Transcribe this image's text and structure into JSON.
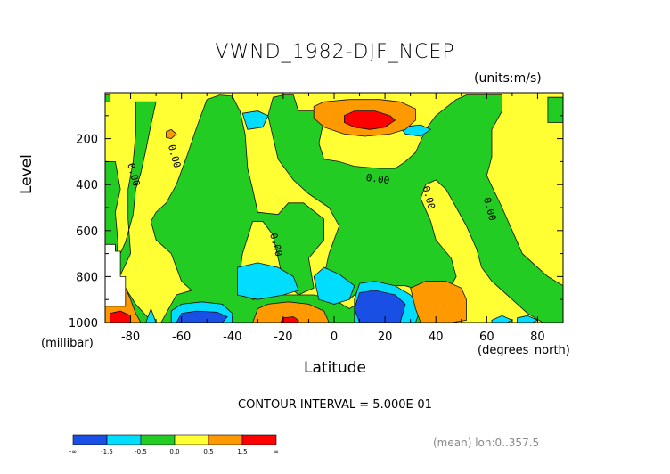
{
  "chart_data": {
    "type": "heatmap",
    "title": "VWND_1982-DJF_NCEP",
    "units": "(units:m/s)",
    "ylabel": "Level",
    "yunits": "(millibar)",
    "xlabel": "Latitude",
    "xunits": "(degrees_north)",
    "xlim": [
      -90,
      90
    ],
    "ylim": [
      1000,
      0
    ],
    "xticks": [
      -80,
      -60,
      -40,
      -20,
      0,
      20,
      40,
      60,
      80
    ],
    "yticks": [
      200,
      400,
      600,
      800,
      1000
    ],
    "contour_interval_text": "CONTOUR INTERVAL = 5.000E-01",
    "mean_text": "(mean) lon:0..357.5",
    "contour_labels": [
      {
        "text": "0.00",
        "lat": -80,
        "p": 360
      },
      {
        "text": "0.00",
        "lat": -64,
        "p": 280
      },
      {
        "text": "0.00",
        "lat": 17,
        "p": 390
      },
      {
        "text": "0.00",
        "lat": 36,
        "p": 460
      },
      {
        "text": "0.00",
        "lat": 60,
        "p": 510
      },
      {
        "text": "0.00",
        "lat": -24,
        "p": 665
      }
    ],
    "colorbar": {
      "colors": [
        "#1a4fe6",
        "#00ddff",
        "#22cc22",
        "#ffff33",
        "#ff9900",
        "#ff0000"
      ],
      "labels": [
        "-∞",
        "-1.5",
        "-0.5",
        "0.0",
        "0.5",
        "1.5",
        "∞"
      ]
    },
    "fill_regions": [
      {
        "color": "#ffff33",
        "poly": [
          [
            -90,
            0
          ],
          [
            90,
            0
          ],
          [
            90,
            1000
          ],
          [
            -90,
            1000
          ]
        ]
      },
      {
        "color": "#22cc22",
        "poly": [
          [
            -90,
            300
          ],
          [
            -86,
            300
          ],
          [
            -84,
            420
          ],
          [
            -86,
            520
          ],
          [
            -85,
            650
          ],
          [
            -87,
            900
          ],
          [
            -90,
            1000
          ]
        ]
      },
      {
        "color": "#22cc22",
        "poly": [
          [
            -90,
            10
          ],
          [
            -88,
            10
          ],
          [
            -88,
            40
          ],
          [
            -90,
            40
          ]
        ]
      },
      {
        "color": "#22cc22",
        "poly": [
          [
            -78,
            40
          ],
          [
            -70,
            40
          ],
          [
            -72,
            140
          ],
          [
            -74,
            250
          ],
          [
            -76,
            350
          ],
          [
            -78,
            420
          ],
          [
            -79,
            530
          ],
          [
            -82,
            650
          ],
          [
            -86,
            750
          ],
          [
            -82,
            850
          ],
          [
            -78,
            920
          ],
          [
            -73,
            980
          ],
          [
            -74,
            1000
          ],
          [
            -80,
            1000
          ],
          [
            -83,
            920
          ],
          [
            -86,
            840
          ],
          [
            -80,
            700
          ],
          [
            -81,
            550
          ],
          [
            -81,
            420
          ],
          [
            -79,
            300
          ],
          [
            -78,
            180
          ]
        ]
      },
      {
        "color": "#22cc22",
        "poly": [
          [
            -50,
            30
          ],
          [
            -45,
            10
          ],
          [
            -40,
            15
          ],
          [
            -37,
            80
          ],
          [
            -35,
            180
          ],
          [
            -34,
            330
          ],
          [
            -32,
            420
          ],
          [
            -30,
            520
          ],
          [
            -22,
            530
          ],
          [
            -18,
            480
          ],
          [
            -12,
            480
          ],
          [
            -4,
            550
          ],
          [
            -4,
            640
          ],
          [
            -10,
            720
          ],
          [
            -8,
            850
          ],
          [
            -14,
            880
          ],
          [
            -20,
            820
          ],
          [
            -24,
            620
          ],
          [
            -28,
            560
          ],
          [
            -32,
            560
          ],
          [
            -36,
            700
          ],
          [
            -38,
            860
          ],
          [
            -32,
            900
          ],
          [
            -20,
            880
          ],
          [
            -8,
            880
          ],
          [
            0,
            900
          ],
          [
            6,
            940
          ],
          [
            12,
            900
          ],
          [
            24,
            900
          ],
          [
            30,
            940
          ],
          [
            40,
            980
          ],
          [
            40,
            1000
          ],
          [
            -68,
            1000
          ],
          [
            -64,
            920
          ],
          [
            -62,
            880
          ],
          [
            -56,
            860
          ],
          [
            -60,
            820
          ],
          [
            -64,
            700
          ],
          [
            -70,
            640
          ],
          [
            -72,
            560
          ],
          [
            -70,
            520
          ],
          [
            -66,
            480
          ],
          [
            -62,
            400
          ],
          [
            -58,
            280
          ],
          [
            -54,
            150
          ]
        ]
      },
      {
        "color": "#22cc22",
        "poly": [
          [
            -16,
            10
          ],
          [
            -14,
            80
          ],
          [
            -6,
            80
          ],
          [
            -4,
            120
          ],
          [
            -6,
            220
          ],
          [
            -4,
            290
          ],
          [
            2,
            300
          ],
          [
            8,
            320
          ],
          [
            18,
            330
          ],
          [
            24,
            330
          ],
          [
            28,
            300
          ],
          [
            32,
            260
          ],
          [
            36,
            160
          ],
          [
            40,
            100
          ],
          [
            48,
            30
          ],
          [
            52,
            10
          ],
          [
            66,
            10
          ],
          [
            66,
            80
          ],
          [
            62,
            160
          ],
          [
            62,
            280
          ],
          [
            60,
            360
          ],
          [
            66,
            500
          ],
          [
            70,
            600
          ],
          [
            74,
            700
          ],
          [
            80,
            760
          ],
          [
            84,
            800
          ],
          [
            90,
            840
          ],
          [
            90,
            1000
          ],
          [
            82,
            1000
          ],
          [
            76,
            960
          ],
          [
            70,
            900
          ],
          [
            62,
            820
          ],
          [
            58,
            760
          ],
          [
            56,
            680
          ],
          [
            52,
            580
          ],
          [
            48,
            500
          ],
          [
            44,
            420
          ],
          [
            40,
            380
          ],
          [
            36,
            400
          ],
          [
            34,
            460
          ],
          [
            38,
            560
          ],
          [
            40,
            640
          ],
          [
            46,
            720
          ],
          [
            48,
            800
          ],
          [
            44,
            880
          ],
          [
            40,
            900
          ],
          [
            34,
            860
          ],
          [
            28,
            840
          ],
          [
            12,
            840
          ],
          [
            6,
            900
          ],
          [
            0,
            900
          ],
          [
            -6,
            900
          ],
          [
            -2,
            700
          ],
          [
            2,
            580
          ],
          [
            -2,
            500
          ],
          [
            -10,
            440
          ],
          [
            -16,
            380
          ],
          [
            -22,
            290
          ],
          [
            -26,
            100
          ],
          [
            -24,
            20
          ],
          [
            -20,
            10
          ]
        ]
      },
      {
        "color": "#22cc22",
        "poly": [
          [
            84,
            20
          ],
          [
            90,
            20
          ],
          [
            90,
            130
          ],
          [
            84,
            130
          ]
        ]
      },
      {
        "color": "#22cc22",
        "poly": [
          [
            -86,
            920
          ],
          [
            -84,
            950
          ],
          [
            -84,
            1000
          ],
          [
            -88,
            1000
          ],
          [
            -90,
            960
          ]
        ]
      },
      {
        "color": "#00ddff",
        "poly": [
          [
            -38,
            760
          ],
          [
            -30,
            740
          ],
          [
            -22,
            760
          ],
          [
            -16,
            800
          ],
          [
            -14,
            860
          ],
          [
            -20,
            880
          ],
          [
            -30,
            900
          ],
          [
            -38,
            880
          ]
        ]
      },
      {
        "color": "#00ddff",
        "poly": [
          [
            -8,
            800
          ],
          [
            -4,
            760
          ],
          [
            2,
            790
          ],
          [
            8,
            840
          ],
          [
            6,
            900
          ],
          [
            0,
            920
          ],
          [
            -6,
            900
          ]
        ]
      },
      {
        "color": "#00ddff",
        "poly": [
          [
            -36,
            90
          ],
          [
            -30,
            80
          ],
          [
            -26,
            100
          ],
          [
            -28,
            150
          ],
          [
            -34,
            160
          ]
        ]
      },
      {
        "color": "#00ddff",
        "poly": [
          [
            26,
            150
          ],
          [
            34,
            140
          ],
          [
            38,
            160
          ],
          [
            34,
            190
          ],
          [
            28,
            180
          ]
        ]
      },
      {
        "color": "#00ddff",
        "poly": [
          [
            -64,
            950
          ],
          [
            -60,
            920
          ],
          [
            -52,
            910
          ],
          [
            -44,
            920
          ],
          [
            -40,
            960
          ],
          [
            -40,
            1000
          ],
          [
            -64,
            1000
          ]
        ]
      },
      {
        "color": "#00ddff",
        "poly": [
          [
            -72,
            940
          ],
          [
            -70,
            1000
          ],
          [
            -74,
            1000
          ]
        ]
      },
      {
        "color": "#00ddff",
        "poly": [
          [
            62,
            990
          ],
          [
            66,
            970
          ],
          [
            70,
            990
          ],
          [
            68,
            1000
          ],
          [
            62,
            1000
          ]
        ]
      },
      {
        "color": "#00ddff",
        "poly": [
          [
            72,
            980
          ],
          [
            76,
            970
          ],
          [
            80,
            990
          ],
          [
            78,
            1000
          ],
          [
            72,
            1000
          ]
        ]
      },
      {
        "color": "#00ddff",
        "poly": [
          [
            10,
            830
          ],
          [
            16,
            820
          ],
          [
            24,
            840
          ],
          [
            30,
            880
          ],
          [
            34,
            940
          ],
          [
            32,
            1000
          ],
          [
            8,
            1000
          ],
          [
            8,
            900
          ]
        ]
      },
      {
        "color": "#1a4fe6",
        "poly": [
          [
            -60,
            960
          ],
          [
            -54,
            950
          ],
          [
            -46,
            955
          ],
          [
            -42,
            975
          ],
          [
            -44,
            1000
          ],
          [
            -62,
            1000
          ]
        ]
      },
      {
        "color": "#1a4fe6",
        "poly": [
          [
            10,
            870
          ],
          [
            16,
            860
          ],
          [
            24,
            880
          ],
          [
            28,
            920
          ],
          [
            26,
            1000
          ],
          [
            10,
            1000
          ],
          [
            8,
            940
          ]
        ]
      },
      {
        "color": "#ff9900",
        "poly": [
          [
            -8,
            60
          ],
          [
            -4,
            40
          ],
          [
            6,
            30
          ],
          [
            18,
            30
          ],
          [
            26,
            40
          ],
          [
            32,
            70
          ],
          [
            32,
            120
          ],
          [
            28,
            160
          ],
          [
            22,
            180
          ],
          [
            12,
            190
          ],
          [
            4,
            180
          ],
          [
            -4,
            150
          ],
          [
            -8,
            110
          ]
        ]
      },
      {
        "color": "#ff9900",
        "poly": [
          [
            -88,
            810
          ],
          [
            -82,
            850
          ],
          [
            -80,
            900
          ],
          [
            -78,
            960
          ],
          [
            -76,
            1000
          ],
          [
            -90,
            1000
          ],
          [
            -90,
            860
          ]
        ]
      },
      {
        "color": "#ff9900",
        "poly": [
          [
            -30,
            940
          ],
          [
            -26,
            920
          ],
          [
            -18,
            910
          ],
          [
            -10,
            920
          ],
          [
            -4,
            950
          ],
          [
            -2,
            1000
          ],
          [
            -32,
            1000
          ]
        ]
      },
      {
        "color": "#ff9900",
        "poly": [
          [
            -66,
            170
          ],
          [
            -64,
            160
          ],
          [
            -62,
            180
          ],
          [
            -64,
            200
          ],
          [
            -66,
            195
          ]
        ]
      },
      {
        "color": "#ff9900",
        "poly": [
          [
            30,
            850
          ],
          [
            36,
            820
          ],
          [
            44,
            820
          ],
          [
            50,
            850
          ],
          [
            52,
            900
          ],
          [
            52,
            990
          ],
          [
            46,
            1000
          ],
          [
            34,
            1000
          ],
          [
            32,
            940
          ]
        ]
      },
      {
        "color": "#ff0000",
        "poly": [
          [
            4,
            100
          ],
          [
            8,
            80
          ],
          [
            16,
            80
          ],
          [
            22,
            100
          ],
          [
            24,
            120
          ],
          [
            20,
            150
          ],
          [
            14,
            160
          ],
          [
            8,
            150
          ],
          [
            4,
            130
          ]
        ]
      },
      {
        "color": "#ff0000",
        "poly": [
          [
            -88,
            960
          ],
          [
            -84,
            950
          ],
          [
            -80,
            970
          ],
          [
            -80,
            1000
          ],
          [
            -88,
            1000
          ]
        ]
      },
      {
        "color": "#ff0000",
        "poly": [
          [
            -20,
            980
          ],
          [
            -16,
            975
          ],
          [
            -14,
            990
          ],
          [
            -14,
            1000
          ],
          [
            -21,
            1000
          ]
        ]
      },
      {
        "color": "#ffffff",
        "poly": [
          [
            -90,
            660
          ],
          [
            -86,
            660
          ],
          [
            -86,
            690
          ],
          [
            -84,
            690
          ],
          [
            -84,
            800
          ],
          [
            -82,
            800
          ],
          [
            -82,
            930
          ],
          [
            -90,
            930
          ]
        ]
      }
    ]
  }
}
